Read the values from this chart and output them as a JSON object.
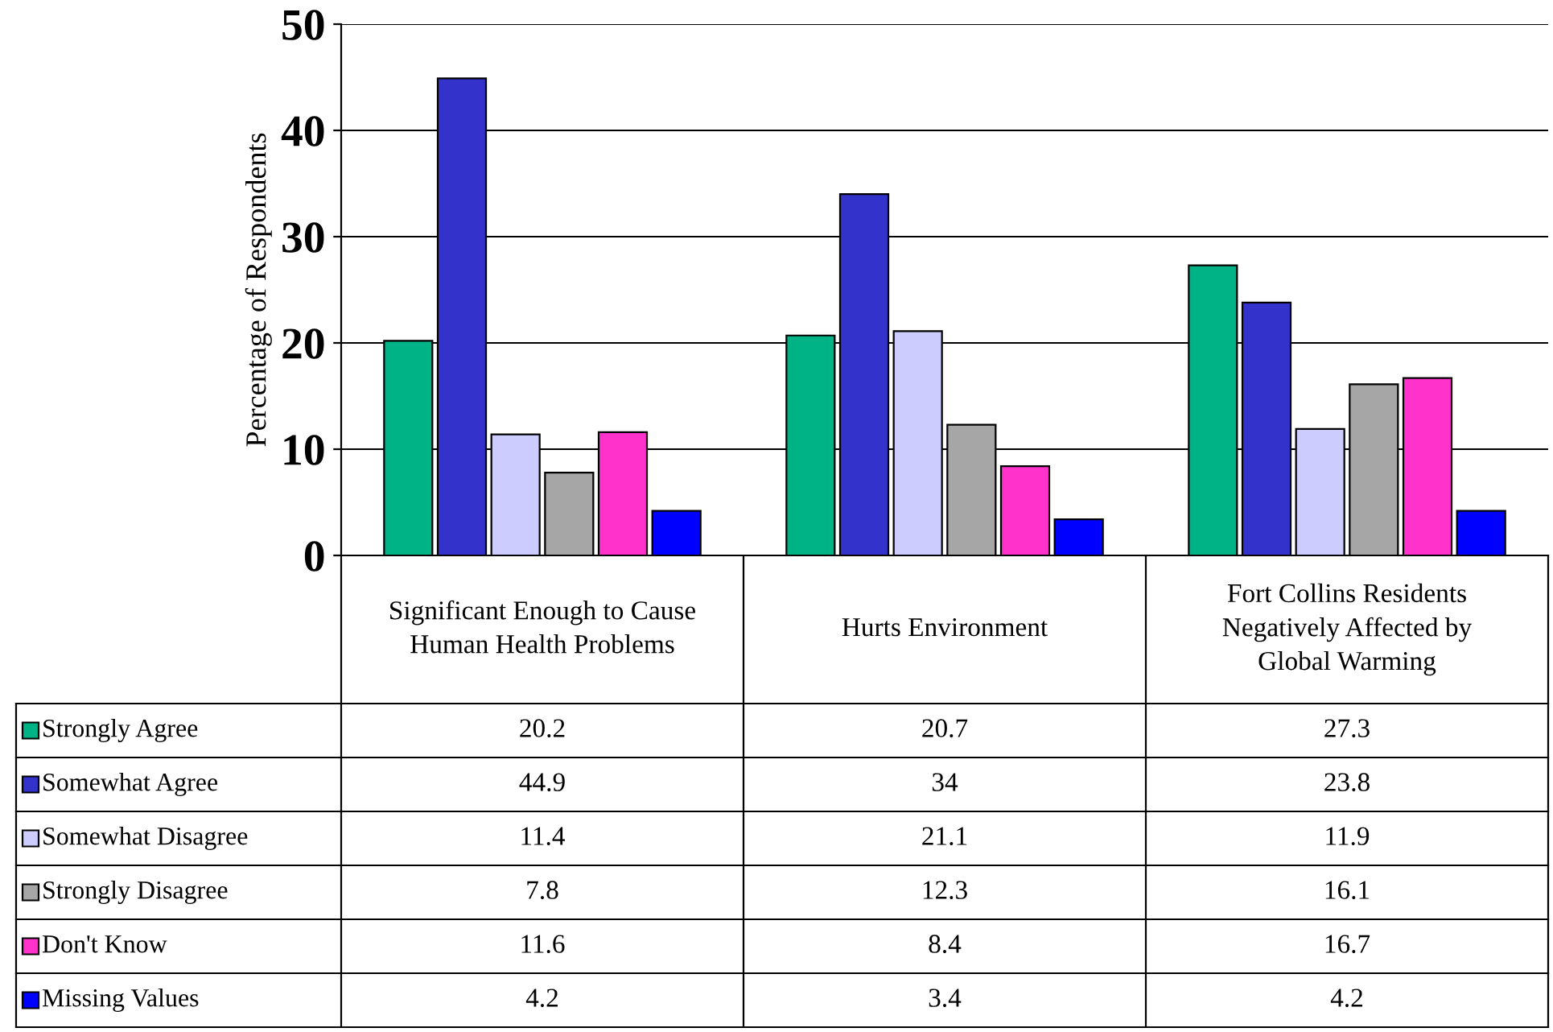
{
  "chart_data": {
    "type": "bar",
    "ylabel": "Percentage of Respondents",
    "categories": [
      "Significant Enough to Cause Human Health Problems",
      "Hurts Environment",
      "Fort Collins Residents Negatively Affected by Global Warming"
    ],
    "series": [
      {
        "name": "Strongly Agree",
        "color": "#00b386",
        "values": [
          20.2,
          20.7,
          27.3
        ]
      },
      {
        "name": "Somewhat Agree",
        "color": "#3333cc",
        "values": [
          44.9,
          34,
          23.8
        ]
      },
      {
        "name": "Somewhat Disagree",
        "color": "#ccccff",
        "values": [
          11.4,
          21.1,
          11.9
        ]
      },
      {
        "name": "Strongly Disagree",
        "color": "#a6a6a6",
        "values": [
          7.8,
          12.3,
          16.1
        ]
      },
      {
        "name": "Don't Know",
        "color": "#ff33cc",
        "values": [
          11.6,
          8.4,
          16.7
        ]
      },
      {
        "name": "Missing Values",
        "color": "#0000ff",
        "values": [
          4.2,
          3.4,
          4.2
        ]
      }
    ],
    "ylim": [
      0,
      50
    ],
    "yticks": [
      0,
      10,
      20,
      30,
      40,
      50
    ],
    "grid": "y",
    "legend": "bottom",
    "data_labels": true
  }
}
